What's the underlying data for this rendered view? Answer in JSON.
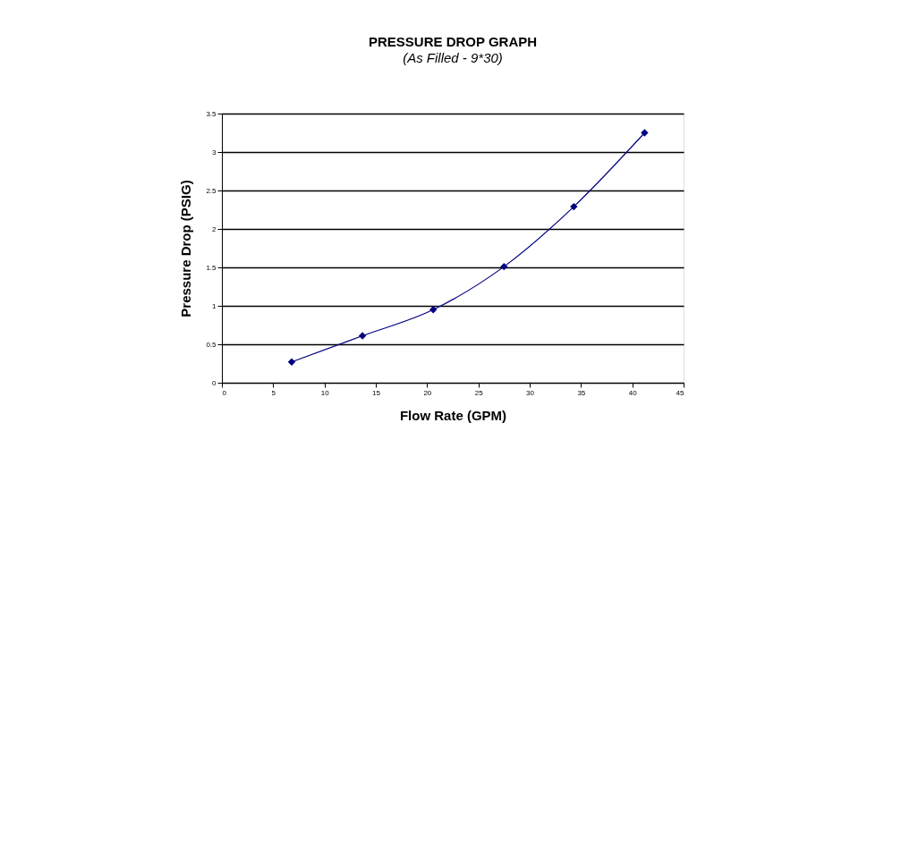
{
  "chart_data": {
    "type": "line",
    "title": "PRESSURE DROP GRAPH",
    "subtitle": "(As Filled - 9*30)",
    "xlabel": "Flow Rate (GPM)",
    "ylabel": "Pressure Drop (PSIG)",
    "x": [
      6.8,
      13.7,
      20.6,
      27.5,
      34.3,
      41.2
    ],
    "series": [
      {
        "color": "#000080",
        "values": [
          0.27,
          0.61,
          0.95,
          1.51,
          2.29,
          3.25
        ]
      }
    ],
    "xlim": [
      0,
      45
    ],
    "xticks": [
      0,
      5,
      10,
      15,
      20,
      25,
      30,
      35,
      40,
      45
    ],
    "ylim": [
      0,
      3.5
    ],
    "yticks": [
      0,
      0.5,
      1,
      1.5,
      2,
      2.5,
      3,
      3.5
    ],
    "grid": "y",
    "marker": "diamond",
    "line_style": "solid"
  }
}
